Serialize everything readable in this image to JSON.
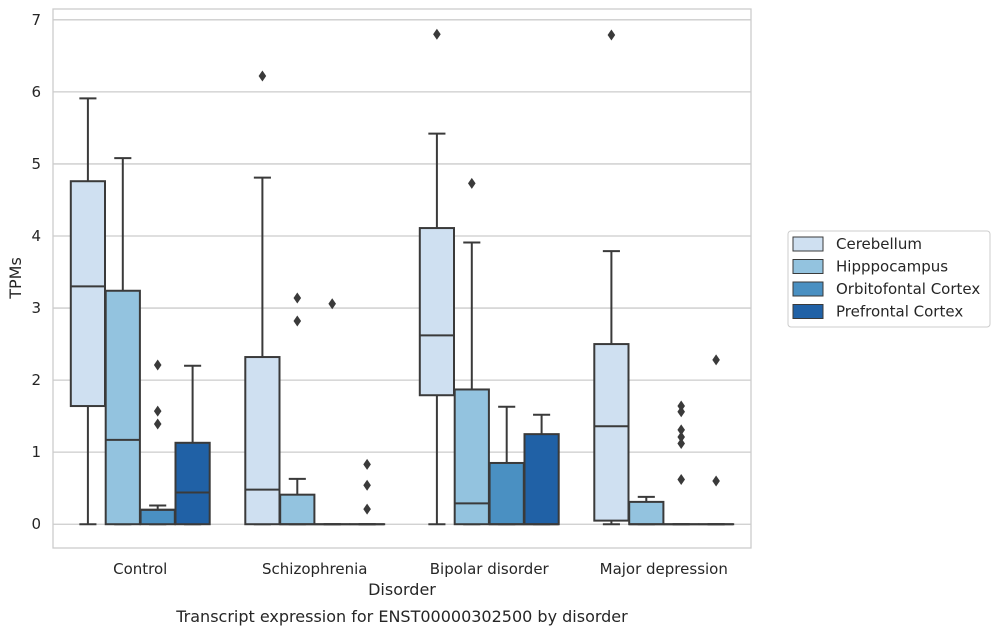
{
  "chart_data": {
    "type": "box",
    "xlabel": "Disorder",
    "ylabel": "TPMs",
    "caption": "Transcript expression for ENST00000302500 by disorder",
    "categories": [
      "Control",
      "Schizophrenia",
      "Bipolar disorder",
      "Major depression"
    ],
    "ylim": [
      -0.33,
      7.15
    ],
    "yticks": [
      0,
      1,
      2,
      3,
      4,
      5,
      6,
      7
    ],
    "grid": true,
    "legend_position": "right",
    "series": [
      {
        "name": "Cerebellum",
        "color": "#cfe0f1",
        "boxes": [
          {
            "whislo": 0,
            "q1": 1.64,
            "med": 3.3,
            "q3": 4.76,
            "whishi": 5.91,
            "fliers": []
          },
          {
            "whislo": 0,
            "q1": 0,
            "med": 0.48,
            "q3": 2.32,
            "whishi": 4.81,
            "fliers": [
              6.22
            ]
          },
          {
            "whislo": 0,
            "q1": 1.79,
            "med": 2.62,
            "q3": 4.11,
            "whishi": 5.42,
            "fliers": [
              6.8
            ]
          },
          {
            "whislo": 0,
            "q1": 0.05,
            "med": 1.36,
            "q3": 2.5,
            "whishi": 3.79,
            "fliers": [
              6.79
            ]
          }
        ]
      },
      {
        "name": "Hipppocampus",
        "color": "#93c3df",
        "boxes": [
          {
            "whislo": 0,
            "q1": 0,
            "med": 1.17,
            "q3": 3.24,
            "whishi": 5.08,
            "fliers": []
          },
          {
            "whislo": 0,
            "q1": 0,
            "med": 0,
            "q3": 0.41,
            "whishi": 0.63,
            "fliers": [
              3.14,
              2.82
            ]
          },
          {
            "whislo": 0,
            "q1": 0,
            "med": 0.29,
            "q3": 1.87,
            "whishi": 3.91,
            "fliers": [
              4.73
            ]
          },
          {
            "whislo": 0,
            "q1": 0,
            "med": 0,
            "q3": 0.31,
            "whishi": 0.38,
            "fliers": []
          }
        ]
      },
      {
        "name": "Orbitofontal Cortex",
        "color": "#4a90c2",
        "boxes": [
          {
            "whislo": 0,
            "q1": 0,
            "med": 0.2,
            "q3": 0.2,
            "whishi": 0.26,
            "fliers": [
              2.21,
              1.57,
              1.39
            ]
          },
          {
            "whislo": 0,
            "q1": 0,
            "med": 0,
            "q3": 0,
            "whishi": 0,
            "fliers": [
              3.06
            ]
          },
          {
            "whislo": 0,
            "q1": 0,
            "med": 0,
            "q3": 0.85,
            "whishi": 1.63,
            "fliers": []
          },
          {
            "whislo": 0,
            "q1": 0,
            "med": 0,
            "q3": 0,
            "whishi": 0,
            "fliers": [
              1.64,
              1.21,
              1.12,
              1.56,
              1.31,
              0.62
            ]
          }
        ]
      },
      {
        "name": "Prefrontal Cortex",
        "color": "#2061a6",
        "boxes": [
          {
            "whislo": 0,
            "q1": 0,
            "med": 0.44,
            "q3": 1.13,
            "whishi": 2.2,
            "fliers": []
          },
          {
            "whislo": 0,
            "q1": 0,
            "med": 0,
            "q3": 0,
            "whishi": 0,
            "fliers": [
              0.83,
              0.54,
              0.21
            ]
          },
          {
            "whislo": 0,
            "q1": 0,
            "med": 0,
            "q3": 1.25,
            "whishi": 1.52,
            "fliers": []
          },
          {
            "whislo": 0,
            "q1": 0,
            "med": 0,
            "q3": 0,
            "whishi": 0,
            "fliers": [
              2.28,
              0.6
            ]
          }
        ]
      }
    ]
  }
}
